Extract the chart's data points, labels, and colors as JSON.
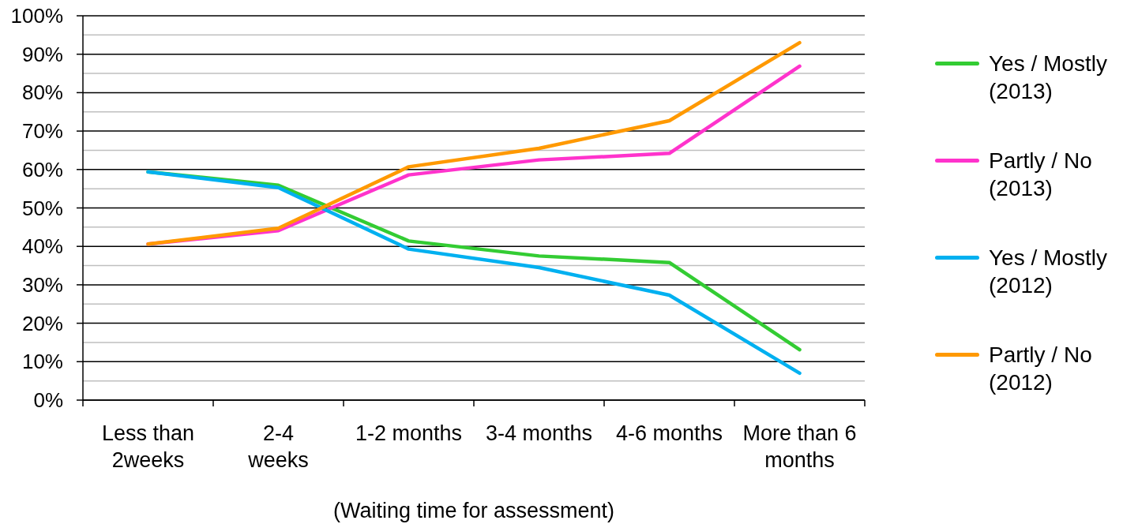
{
  "chart_data": {
    "type": "line",
    "xlabel": "(Waiting time for assessment)",
    "categories": [
      "Less than\n2weeks",
      "2-4\nweeks",
      "1-2 months",
      "3-4 months",
      "4-6 months",
      "More than 6\nmonths"
    ],
    "series": [
      {
        "name": "Yes / Mostly (2013)",
        "color": "#33cc33",
        "values": [
          59.4,
          55.9,
          41.4,
          37.5,
          35.8,
          13.1
        ]
      },
      {
        "name": "Partly / No (2013)",
        "color": "#ff33cc",
        "values": [
          40.6,
          44.1,
          58.6,
          62.5,
          64.2,
          86.9
        ]
      },
      {
        "name": "Yes / Mostly (2012)",
        "color": "#00b0f0",
        "values": [
          59.4,
          55.3,
          39.3,
          34.5,
          27.3,
          7.0
        ]
      },
      {
        "name": "Partly / No (2012)",
        "color": "#ff9900",
        "values": [
          40.6,
          44.7,
          60.7,
          65.5,
          72.7,
          93.0
        ]
      }
    ],
    "ylim": [
      0,
      100
    ],
    "yticks": [
      {
        "value": 0,
        "label": "0%"
      },
      {
        "value": 5,
        "label": null
      },
      {
        "value": 10,
        "label": "10%"
      },
      {
        "value": 15,
        "label": null
      },
      {
        "value": 20,
        "label": "20%"
      },
      {
        "value": 25,
        "label": null
      },
      {
        "value": 30,
        "label": "30%"
      },
      {
        "value": 35,
        "label": null
      },
      {
        "value": 40,
        "label": "40%"
      },
      {
        "value": 45,
        "label": null
      },
      {
        "value": 50,
        "label": "50%"
      },
      {
        "value": 55,
        "label": null
      },
      {
        "value": 60,
        "label": "60%"
      },
      {
        "value": 65,
        "label": null
      },
      {
        "value": 70,
        "label": "70%"
      },
      {
        "value": 75,
        "label": null
      },
      {
        "value": 80,
        "label": "80%"
      },
      {
        "value": 85,
        "label": null
      },
      {
        "value": 90,
        "label": "90%"
      },
      {
        "value": 95,
        "label": null
      },
      {
        "value": 100,
        "label": "100%"
      }
    ],
    "grid": "y",
    "legend": "right"
  }
}
